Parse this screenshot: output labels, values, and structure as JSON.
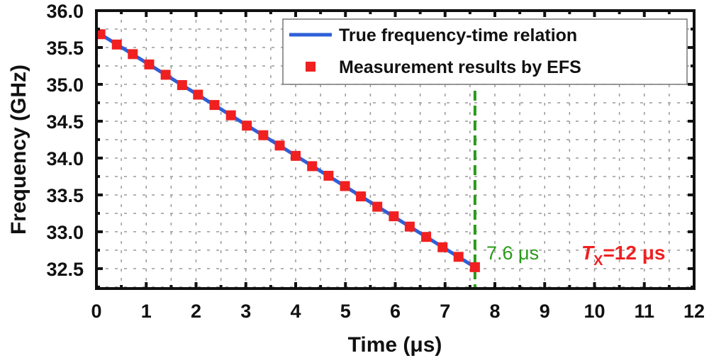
{
  "chart_data": {
    "type": "line",
    "xlabel": "Time (μs)",
    "ylabel": "Frequency (GHz)",
    "xlim": [
      0,
      12
    ],
    "ylim": [
      32.23,
      36.0
    ],
    "xticks": [
      "0",
      "1",
      "2",
      "3",
      "4",
      "5",
      "6",
      "7",
      "8",
      "9",
      "10",
      "11",
      "12"
    ],
    "yticks": [
      "32.5",
      "33.0",
      "33.5",
      "34.0",
      "34.5",
      "35.0",
      "35.5",
      "36.0"
    ],
    "grid": true,
    "legend_placement": "top-right",
    "series": [
      {
        "name": "True frequency-time relation",
        "type": "line",
        "color": "#2f5fd8",
        "x": [
          0.08,
          7.6
        ],
        "y": [
          35.68,
          32.52
        ]
      },
      {
        "name": "Measurement results by EFS",
        "type": "scatter",
        "color": "#f02020",
        "x": [
          0.08,
          0.41,
          0.73,
          1.06,
          1.39,
          1.72,
          2.04,
          2.37,
          2.7,
          3.02,
          3.35,
          3.68,
          4.0,
          4.33,
          4.66,
          4.99,
          5.31,
          5.64,
          5.97,
          6.29,
          6.62,
          6.95,
          7.27,
          7.6
        ],
        "y": [
          35.68,
          35.54,
          35.41,
          35.27,
          35.13,
          34.99,
          34.86,
          34.72,
          34.58,
          34.44,
          34.31,
          34.17,
          34.03,
          33.89,
          33.76,
          33.62,
          33.48,
          33.34,
          33.21,
          33.07,
          32.93,
          32.79,
          32.66,
          32.52
        ]
      }
    ],
    "vline": {
      "x": 7.6,
      "color": "#2a9a1a"
    },
    "annotations": {
      "vline_label": "7.6 μs",
      "tx_T": "T",
      "tx_sub": "X",
      "tx_rest": "=12 μs",
      "tx_color": "#f02020"
    }
  }
}
